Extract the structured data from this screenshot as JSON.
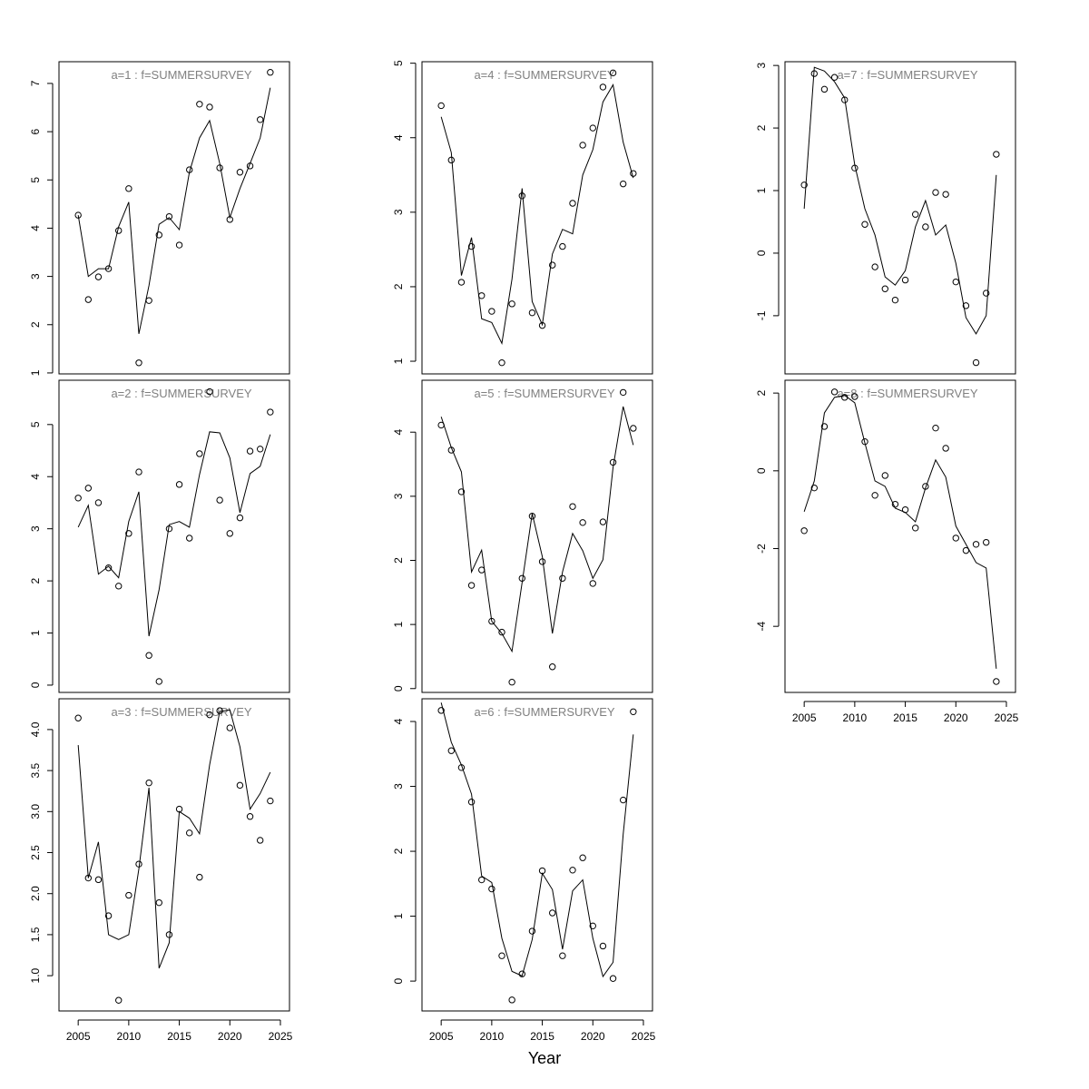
{
  "xlabel": "Year",
  "chart_data": [
    {
      "type": "line",
      "title": "a=1  :  f=SUMMERSURVEY",
      "xaxis": false,
      "x": [
        2005,
        2006,
        2007,
        2008,
        2009,
        2010,
        2011,
        2012,
        2013,
        2014,
        2015,
        2016,
        2017,
        2018,
        2019,
        2020,
        2021,
        2022,
        2023,
        2024
      ],
      "xlim": [
        2003.1,
        2025.9
      ],
      "xticks": [
        2005,
        2010,
        2015,
        2020,
        2025
      ],
      "ylim": [
        0.98,
        7.45
      ],
      "yticks": [
        1,
        2,
        3,
        4,
        5,
        6,
        7
      ],
      "series": [
        {
          "mode": "points",
          "color": "#000000",
          "values": [
            4.27,
            2.52,
            2.99,
            3.16,
            3.95,
            4.82,
            1.21,
            2.5,
            3.86,
            4.24,
            3.65,
            5.21,
            6.57,
            6.51,
            5.25,
            4.18,
            5.16,
            5.29,
            6.25,
            7.23
          ]
        },
        {
          "mode": "lines",
          "color": "#000000",
          "values": [
            4.27,
            3.0,
            3.16,
            3.16,
            4.03,
            4.54,
            1.81,
            2.81,
            4.08,
            4.22,
            3.97,
            5.16,
            5.87,
            6.23,
            5.34,
            4.22,
            4.82,
            5.34,
            5.87,
            6.91
          ]
        }
      ]
    },
    {
      "type": "line",
      "title": "a=2  :  f=SUMMERSURVEY",
      "xaxis": false,
      "x": [
        2005,
        2006,
        2007,
        2008,
        2009,
        2010,
        2011,
        2012,
        2013,
        2014,
        2015,
        2016,
        2017,
        2018,
        2019,
        2020,
        2021,
        2022,
        2023,
        2024
      ],
      "xlim": [
        2003.1,
        2025.9
      ],
      "xticks": [
        2005,
        2010,
        2015,
        2020,
        2025
      ],
      "ylim": [
        -0.14,
        5.85
      ],
      "yticks": [
        0,
        1,
        2,
        3,
        4,
        5
      ],
      "series": [
        {
          "mode": "points",
          "color": "#000000",
          "values": [
            3.59,
            3.78,
            3.5,
            2.25,
            1.9,
            2.91,
            4.09,
            0.57,
            0.07,
            3.0,
            3.85,
            2.82,
            4.44,
            5.63,
            3.55,
            2.91,
            3.21,
            4.49,
            4.53,
            5.24
          ]
        },
        {
          "mode": "lines",
          "color": "#000000",
          "values": [
            3.03,
            3.45,
            2.13,
            2.28,
            2.06,
            3.14,
            3.71,
            0.94,
            1.83,
            3.08,
            3.14,
            3.03,
            4.04,
            4.86,
            4.84,
            4.36,
            3.31,
            4.06,
            4.2,
            4.81
          ]
        }
      ]
    },
    {
      "type": "line",
      "title": "a=3  :  f=SUMMERSURVEY",
      "xaxis": true,
      "x": [
        2005,
        2006,
        2007,
        2008,
        2009,
        2010,
        2011,
        2012,
        2013,
        2014,
        2015,
        2016,
        2017,
        2018,
        2019,
        2020,
        2021,
        2022,
        2023,
        2024
      ],
      "xlim": [
        2003.1,
        2025.9
      ],
      "xticks": [
        2005,
        2010,
        2015,
        2020,
        2025
      ],
      "ylim": [
        0.57,
        4.375
      ],
      "yticks": [
        {
          "value": 1,
          "label": "1.0"
        },
        1.5,
        {
          "value": 2,
          "label": "2.0"
        },
        2.5,
        {
          "value": 3,
          "label": "3.0"
        },
        3.5,
        {
          "value": 4,
          "label": "4.0"
        }
      ],
      "series": [
        {
          "mode": "points",
          "color": "#000000",
          "values": [
            4.14,
            2.19,
            2.17,
            1.73,
            0.7,
            1.98,
            2.36,
            3.35,
            1.89,
            1.5,
            3.03,
            2.74,
            2.2,
            4.18,
            4.23,
            4.02,
            3.32,
            2.94,
            2.65,
            3.13
          ]
        },
        {
          "mode": "lines",
          "color": "#000000",
          "values": [
            3.81,
            2.19,
            2.63,
            1.5,
            1.44,
            1.5,
            2.3,
            3.29,
            1.09,
            1.4,
            3.0,
            2.92,
            2.73,
            3.57,
            4.22,
            4.24,
            3.79,
            3.03,
            3.22,
            3.48
          ]
        }
      ]
    },
    {
      "type": "line",
      "title": "a=4  :  f=SUMMERSURVEY",
      "xaxis": false,
      "x": [
        2005,
        2006,
        2007,
        2008,
        2009,
        2010,
        2011,
        2012,
        2013,
        2014,
        2015,
        2016,
        2017,
        2018,
        2019,
        2020,
        2021,
        2022,
        2023,
        2024
      ],
      "xlim": [
        2003.1,
        2025.9
      ],
      "xticks": [
        2005,
        2010,
        2015,
        2020,
        2025
      ],
      "ylim": [
        0.83,
        5.02
      ],
      "yticks": [
        1,
        2,
        3,
        4,
        5
      ],
      "series": [
        {
          "mode": "points",
          "color": "#000000",
          "values": [
            4.43,
            3.7,
            2.06,
            2.54,
            1.88,
            1.67,
            0.98,
            1.77,
            3.22,
            1.65,
            1.48,
            2.29,
            2.54,
            3.12,
            3.9,
            4.13,
            4.68,
            4.87,
            3.38,
            3.52
          ]
        },
        {
          "mode": "lines",
          "color": "#000000",
          "values": [
            4.28,
            3.8,
            2.15,
            2.66,
            1.57,
            1.52,
            1.24,
            2.1,
            3.32,
            1.8,
            1.49,
            2.44,
            2.77,
            2.71,
            3.5,
            3.84,
            4.48,
            4.71,
            3.94,
            3.46
          ]
        }
      ]
    },
    {
      "type": "line",
      "title": "a=5  :  f=SUMMERSURVEY",
      "xaxis": false,
      "x": [
        2005,
        2006,
        2007,
        2008,
        2009,
        2010,
        2011,
        2012,
        2013,
        2014,
        2015,
        2016,
        2017,
        2018,
        2019,
        2020,
        2021,
        2022,
        2023,
        2024
      ],
      "xlim": [
        2003.1,
        2025.9
      ],
      "xticks": [
        2005,
        2010,
        2015,
        2020,
        2025
      ],
      "ylim": [
        -0.06,
        4.81
      ],
      "yticks": [
        0,
        1,
        2,
        3,
        4
      ],
      "series": [
        {
          "mode": "points",
          "color": "#000000",
          "values": [
            4.11,
            3.72,
            3.07,
            1.61,
            1.85,
            1.05,
            0.88,
            0.1,
            1.72,
            2.69,
            1.98,
            0.34,
            1.72,
            2.84,
            2.59,
            1.64,
            2.6,
            3.53,
            4.62,
            4.06
          ]
        },
        {
          "mode": "lines",
          "color": "#000000",
          "values": [
            4.24,
            3.76,
            3.38,
            1.82,
            2.16,
            1.05,
            0.86,
            0.58,
            1.65,
            2.73,
            2.06,
            0.86,
            1.82,
            2.42,
            2.15,
            1.72,
            2.01,
            3.45,
            4.4,
            3.8
          ]
        }
      ]
    },
    {
      "type": "line",
      "title": "a=6  :  f=SUMMERSURVEY",
      "xaxis": true,
      "x": [
        2005,
        2006,
        2007,
        2008,
        2009,
        2010,
        2011,
        2012,
        2013,
        2014,
        2015,
        2016,
        2017,
        2018,
        2019,
        2020,
        2021,
        2022,
        2023,
        2024
      ],
      "xlim": [
        2003.1,
        2025.9
      ],
      "xticks": [
        2005,
        2010,
        2015,
        2020,
        2025
      ],
      "ylim": [
        -0.46,
        4.35
      ],
      "yticks": [
        0,
        1,
        2,
        3,
        4
      ],
      "series": [
        {
          "mode": "points",
          "color": "#000000",
          "values": [
            4.17,
            3.55,
            3.29,
            2.76,
            1.56,
            1.42,
            0.39,
            -0.29,
            0.11,
            0.77,
            1.7,
            1.05,
            0.39,
            1.71,
            1.9,
            0.85,
            0.54,
            0.04,
            2.79,
            4.15
          ]
        },
        {
          "mode": "lines",
          "color": "#000000",
          "values": [
            4.29,
            3.68,
            3.33,
            2.88,
            1.62,
            1.52,
            0.66,
            0.15,
            0.08,
            0.64,
            1.66,
            1.41,
            0.49,
            1.39,
            1.56,
            0.66,
            0.07,
            0.29,
            2.26,
            3.8
          ]
        }
      ]
    },
    {
      "type": "line",
      "title": "a=7  :  f=SUMMERSURVEY",
      "xaxis": false,
      "x": [
        2005,
        2006,
        2007,
        2008,
        2009,
        2010,
        2011,
        2012,
        2013,
        2014,
        2015,
        2016,
        2017,
        2018,
        2019,
        2020,
        2021,
        2022,
        2023,
        2024
      ],
      "xlim": [
        2003.1,
        2025.9
      ],
      "xticks": [
        2005,
        2010,
        2015,
        2020,
        2025
      ],
      "ylim": [
        -1.93,
        3.06
      ],
      "yticks": [
        -1,
        0,
        1,
        2,
        3
      ],
      "series": [
        {
          "mode": "points",
          "color": "#000000",
          "values": [
            1.09,
            2.87,
            2.62,
            2.81,
            2.45,
            1.36,
            0.46,
            -0.22,
            -0.57,
            -0.75,
            -0.43,
            0.62,
            0.42,
            0.97,
            0.94,
            -0.46,
            -0.84,
            -1.75,
            -0.64,
            1.58
          ]
        },
        {
          "mode": "lines",
          "color": "#000000",
          "values": [
            0.71,
            2.97,
            2.91,
            2.74,
            2.48,
            1.41,
            0.71,
            0.29,
            -0.38,
            -0.51,
            -0.28,
            0.42,
            0.84,
            0.29,
            0.45,
            -0.16,
            -1.03,
            -1.29,
            -1.0,
            1.25
          ]
        }
      ]
    },
    {
      "type": "line",
      "title": "a=8  :  f=SUMMERSURVEY",
      "xaxis": true,
      "x": [
        2005,
        2006,
        2007,
        2008,
        2009,
        2010,
        2011,
        2012,
        2013,
        2014,
        2015,
        2016,
        2017,
        2018,
        2019,
        2020,
        2021,
        2022,
        2023,
        2024
      ],
      "xlim": [
        2003.1,
        2025.9
      ],
      "xticks": [
        2005,
        2010,
        2015,
        2020,
        2025
      ],
      "ylim": [
        -5.7,
        2.33
      ],
      "yticks": [
        -4,
        -2,
        0,
        2
      ],
      "series": [
        {
          "mode": "points",
          "color": "#000000",
          "values": [
            -1.54,
            -0.44,
            1.14,
            2.03,
            1.89,
            1.91,
            0.75,
            -0.63,
            -0.12,
            -0.86,
            -1.0,
            -1.47,
            -0.4,
            1.1,
            0.58,
            -1.73,
            -2.05,
            -1.89,
            -1.84,
            -5.42
          ]
        },
        {
          "mode": "lines",
          "color": "#000000",
          "values": [
            -1.05,
            -0.26,
            1.49,
            1.89,
            1.94,
            1.75,
            0.72,
            -0.26,
            -0.4,
            -0.96,
            -1.07,
            -1.31,
            -0.44,
            0.28,
            -0.16,
            -1.42,
            -1.89,
            -2.36,
            -2.5,
            -5.09
          ]
        }
      ]
    }
  ]
}
